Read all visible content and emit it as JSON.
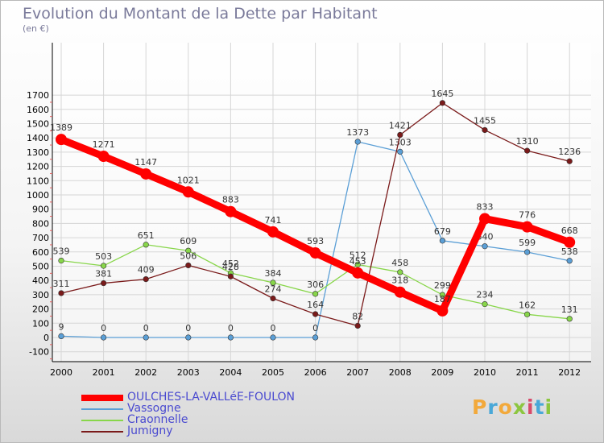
{
  "title": "Evolution du Montant de la Dette par Habitant",
  "unit": "(en €)",
  "logo": [
    {
      "ch": "P",
      "color": "#f2a93b"
    },
    {
      "ch": "r",
      "color": "#49a8d8"
    },
    {
      "ch": "o",
      "color": "#f2a93b"
    },
    {
      "ch": "x",
      "color": "#8cc63f"
    },
    {
      "ch": "i",
      "color": "#d84a6a"
    },
    {
      "ch": "t",
      "color": "#49a8d8"
    },
    {
      "ch": "i",
      "color": "#8cc63f"
    }
  ],
  "chart_data": {
    "type": "line",
    "x": [
      "2000",
      "2001",
      "2002",
      "2003",
      "2004",
      "2005",
      "2006",
      "2007",
      "2008",
      "2009",
      "2010",
      "2011",
      "2012"
    ],
    "ylim": [
      -100,
      1700
    ],
    "yticks": [
      "1700",
      "1600",
      "1500",
      "1400",
      "1300",
      "1200",
      "1100",
      "1000",
      "900",
      "800",
      "700",
      "600",
      "500",
      "400",
      "300",
      "200",
      "100",
      "0",
      "-100"
    ],
    "grid": true,
    "legend_position": "bottom-left",
    "series": [
      {
        "name": "OULCHES-LA-VALLéE-FOULON",
        "color": "#ff0000",
        "emphasis": true,
        "values": [
          1389,
          1271,
          1147,
          1021,
          883,
          741,
          593,
          453,
          318,
          187,
          833,
          776,
          668
        ]
      },
      {
        "name": "Vassogne",
        "color": "#5b9fd6",
        "emphasis": false,
        "values": [
          9,
          0,
          0,
          0,
          0,
          0,
          0,
          1373,
          1303,
          679,
          640,
          599,
          538
        ]
      },
      {
        "name": "Craonnelle",
        "color": "#88d64a",
        "emphasis": false,
        "values": [
          539,
          503,
          651,
          609,
          452,
          384,
          306,
          512,
          458,
          299,
          234,
          162,
          131
        ]
      },
      {
        "name": "Jumigny",
        "color": "#7a1a1a",
        "emphasis": false,
        "values": [
          311,
          381,
          409,
          506,
          428,
          274,
          164,
          82,
          1421,
          1645,
          1455,
          1310,
          1236
        ]
      }
    ]
  }
}
